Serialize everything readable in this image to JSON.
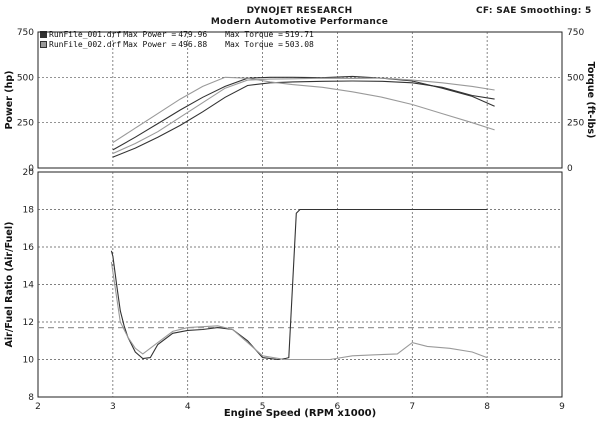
{
  "header": {
    "company": "DYNOJET RESEARCH",
    "subtitle": "Modern Automotive Performance",
    "settings": "CF: SAE  Smoothing: 5"
  },
  "legend": [
    {
      "file": "RunFile_001.drf",
      "max_power_label": "Max Power =",
      "max_power": "479.96",
      "max_torque_label": "Max Torque =",
      "max_torque": "519.71",
      "color": "#333333"
    },
    {
      "file": "RunFile_002.drf",
      "max_power_label": "Max Power =",
      "max_power": "496.88",
      "max_torque_label": "Max Torque =",
      "max_torque": "503.08",
      "color": "#9a9a9a"
    }
  ],
  "chart_data": [
    {
      "type": "line",
      "ylabel_left": "Power (hp)",
      "ylabel_right": "Torque (ft-lbs)",
      "xlim": [
        2,
        9
      ],
      "ylim_left": [
        0,
        750
      ],
      "ylim_right": [
        0,
        750
      ],
      "left_ticks": [
        "0",
        "250",
        "500",
        "750"
      ],
      "right_ticks": [
        "0",
        "250",
        "500",
        "750"
      ],
      "grid": true,
      "series": [
        {
          "name": "RunFile_001.drf Power",
          "color": "#333333",
          "dash": false,
          "x": [
            3.0,
            3.3,
            3.6,
            3.9,
            4.2,
            4.5,
            4.8,
            5.1,
            5.4,
            5.8,
            6.2,
            6.6,
            7.0,
            7.4,
            7.8,
            8.1
          ],
          "y": [
            60,
            110,
            170,
            235,
            310,
            390,
            455,
            470,
            475,
            478,
            480,
            478,
            470,
            445,
            400,
            380
          ]
        },
        {
          "name": "RunFile_001.drf Torque",
          "color": "#333333",
          "dash": false,
          "x": [
            3.0,
            3.3,
            3.6,
            3.9,
            4.2,
            4.5,
            4.8,
            5.1,
            5.4,
            5.8,
            6.2,
            6.6,
            7.0,
            7.4,
            7.8,
            8.1
          ],
          "y": [
            100,
            170,
            245,
            320,
            390,
            450,
            495,
            500,
            500,
            498,
            505,
            495,
            480,
            440,
            395,
            340
          ]
        },
        {
          "name": "RunFile_002.drf Power",
          "color": "#9a9a9a",
          "dash": false,
          "x": [
            3.0,
            3.3,
            3.6,
            3.9,
            4.2,
            4.5,
            4.8,
            5.1,
            5.4,
            5.8,
            6.2,
            6.6,
            7.0,
            7.4,
            7.8,
            8.1
          ],
          "y": [
            80,
            135,
            200,
            280,
            360,
            440,
            485,
            490,
            492,
            495,
            494,
            496,
            485,
            470,
            450,
            430
          ]
        },
        {
          "name": "RunFile_002.drf Torque",
          "color": "#9a9a9a",
          "dash": false,
          "x": [
            3.0,
            3.3,
            3.6,
            3.9,
            4.2,
            4.5,
            4.8,
            5.1,
            5.4,
            5.8,
            6.2,
            6.6,
            7.0,
            7.4,
            7.8,
            8.1
          ],
          "y": [
            140,
            220,
            300,
            380,
            450,
            500,
            495,
            475,
            460,
            445,
            420,
            390,
            350,
            300,
            250,
            210
          ]
        }
      ]
    },
    {
      "type": "line",
      "xlabel": "Engine Speed (RPM x1000)",
      "ylabel": "Air/Fuel Ratio (Air/Fuel)",
      "xlim": [
        2,
        9
      ],
      "ylim": [
        8,
        20
      ],
      "x_ticks": [
        "2",
        "3",
        "4",
        "5",
        "6",
        "7",
        "8",
        "9"
      ],
      "y_ticks": [
        "8",
        "10",
        "12",
        "14",
        "16",
        "18",
        "20"
      ],
      "grid": true,
      "reference_line": {
        "y": 11.7,
        "style": "dashed",
        "color": "#9a9a9a"
      },
      "series": [
        {
          "name": "RunFile_001.drf AFR",
          "color": "#333333",
          "x": [
            2.98,
            3.0,
            3.05,
            3.1,
            3.15,
            3.2,
            3.3,
            3.4,
            3.5,
            3.6,
            3.8,
            4.0,
            4.2,
            4.4,
            4.6,
            4.8,
            5.0,
            5.2,
            5.3,
            5.35,
            5.45,
            5.5,
            8.0
          ],
          "y": [
            15.8,
            15.5,
            14.0,
            12.6,
            11.8,
            11.2,
            10.4,
            10.05,
            10.1,
            10.8,
            11.4,
            11.55,
            11.6,
            11.7,
            11.6,
            11.0,
            10.1,
            10.0,
            10.05,
            10.1,
            17.8,
            18.0,
            18.0
          ]
        },
        {
          "name": "RunFile_002.drf AFR",
          "color": "#9a9a9a",
          "x": [
            2.98,
            3.1,
            3.2,
            3.3,
            3.4,
            3.6,
            3.8,
            4.0,
            4.2,
            4.4,
            4.6,
            4.8,
            5.0,
            5.3,
            5.6,
            5.9,
            6.2,
            6.5,
            6.8,
            7.0,
            7.2,
            7.5,
            7.8,
            8.0
          ],
          "y": [
            15.2,
            12.0,
            11.2,
            10.6,
            10.3,
            10.9,
            11.5,
            11.7,
            11.75,
            11.8,
            11.6,
            10.9,
            10.2,
            10.0,
            10.0,
            10.0,
            10.2,
            10.25,
            10.3,
            10.9,
            10.7,
            10.6,
            10.4,
            10.1
          ]
        }
      ]
    }
  ]
}
